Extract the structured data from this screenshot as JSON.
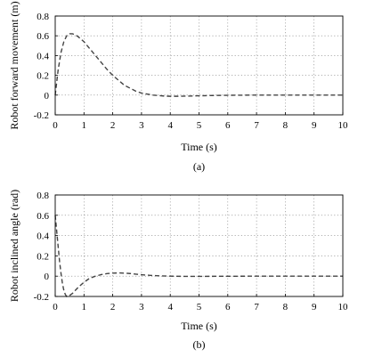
{
  "chart_data": [
    {
      "type": "line",
      "title": "",
      "caption": "(a)",
      "xlabel": "Time (s)",
      "ylabel": "Robot forward movement (m)",
      "xlim": [
        0,
        10
      ],
      "ylim": [
        -0.2,
        0.8
      ],
      "xticks": [
        0,
        1,
        2,
        3,
        4,
        5,
        6,
        7,
        8,
        9,
        10
      ],
      "yticks": [
        -0.2,
        0,
        0.2,
        0.4,
        0.6,
        0.8
      ],
      "grid": true,
      "series": [
        {
          "color": "#444444",
          "x": [
            0,
            0.1,
            0.2,
            0.3,
            0.4,
            0.5,
            0.6,
            0.7,
            0.8,
            1.0,
            1.2,
            1.4,
            1.6,
            1.8,
            2.0,
            2.2,
            2.4,
            2.6,
            2.8,
            3.0,
            3.2,
            3.4,
            3.6,
            3.8,
            4.0,
            4.3,
            4.6,
            5.0,
            5.5,
            6.0,
            7.0,
            8.0,
            9.0,
            10.0
          ],
          "y": [
            0,
            0.25,
            0.43,
            0.54,
            0.6,
            0.62,
            0.62,
            0.61,
            0.59,
            0.54,
            0.47,
            0.4,
            0.33,
            0.26,
            0.2,
            0.15,
            0.1,
            0.07,
            0.04,
            0.02,
            0.01,
            0.0,
            -0.005,
            -0.01,
            -0.012,
            -0.012,
            -0.01,
            -0.007,
            -0.004,
            -0.002,
            0.0,
            0.0,
            0.0,
            0.0
          ]
        }
      ]
    },
    {
      "type": "line",
      "title": "",
      "caption": "(b)",
      "xlabel": "Time (s)",
      "ylabel": "Robot inclined angle (rad)",
      "xlim": [
        0,
        10
      ],
      "ylim": [
        -0.2,
        0.8
      ],
      "xticks": [
        0,
        1,
        2,
        3,
        4,
        5,
        6,
        7,
        8,
        9,
        10
      ],
      "yticks": [
        -0.2,
        0,
        0.2,
        0.4,
        0.6,
        0.8
      ],
      "grid": true,
      "series": [
        {
          "color": "#444444",
          "x": [
            0,
            0.05,
            0.1,
            0.15,
            0.2,
            0.25,
            0.3,
            0.35,
            0.4,
            0.5,
            0.6,
            0.7,
            0.8,
            1.0,
            1.2,
            1.4,
            1.6,
            1.8,
            2.0,
            2.2,
            2.4,
            2.6,
            2.8,
            3.0,
            3.3,
            3.6,
            4.0,
            4.5,
            5.0,
            6.0,
            7.0,
            8.0,
            9.0,
            10.0
          ],
          "y": [
            0.6,
            0.45,
            0.3,
            0.15,
            0.03,
            -0.07,
            -0.14,
            -0.18,
            -0.2,
            -0.19,
            -0.17,
            -0.14,
            -0.11,
            -0.06,
            -0.02,
            0.0,
            0.015,
            0.025,
            0.03,
            0.032,
            0.03,
            0.026,
            0.02,
            0.014,
            0.008,
            0.003,
            0.0,
            -0.002,
            -0.002,
            -0.001,
            0.0,
            0.0,
            0.0,
            0.0
          ]
        }
      ]
    }
  ]
}
